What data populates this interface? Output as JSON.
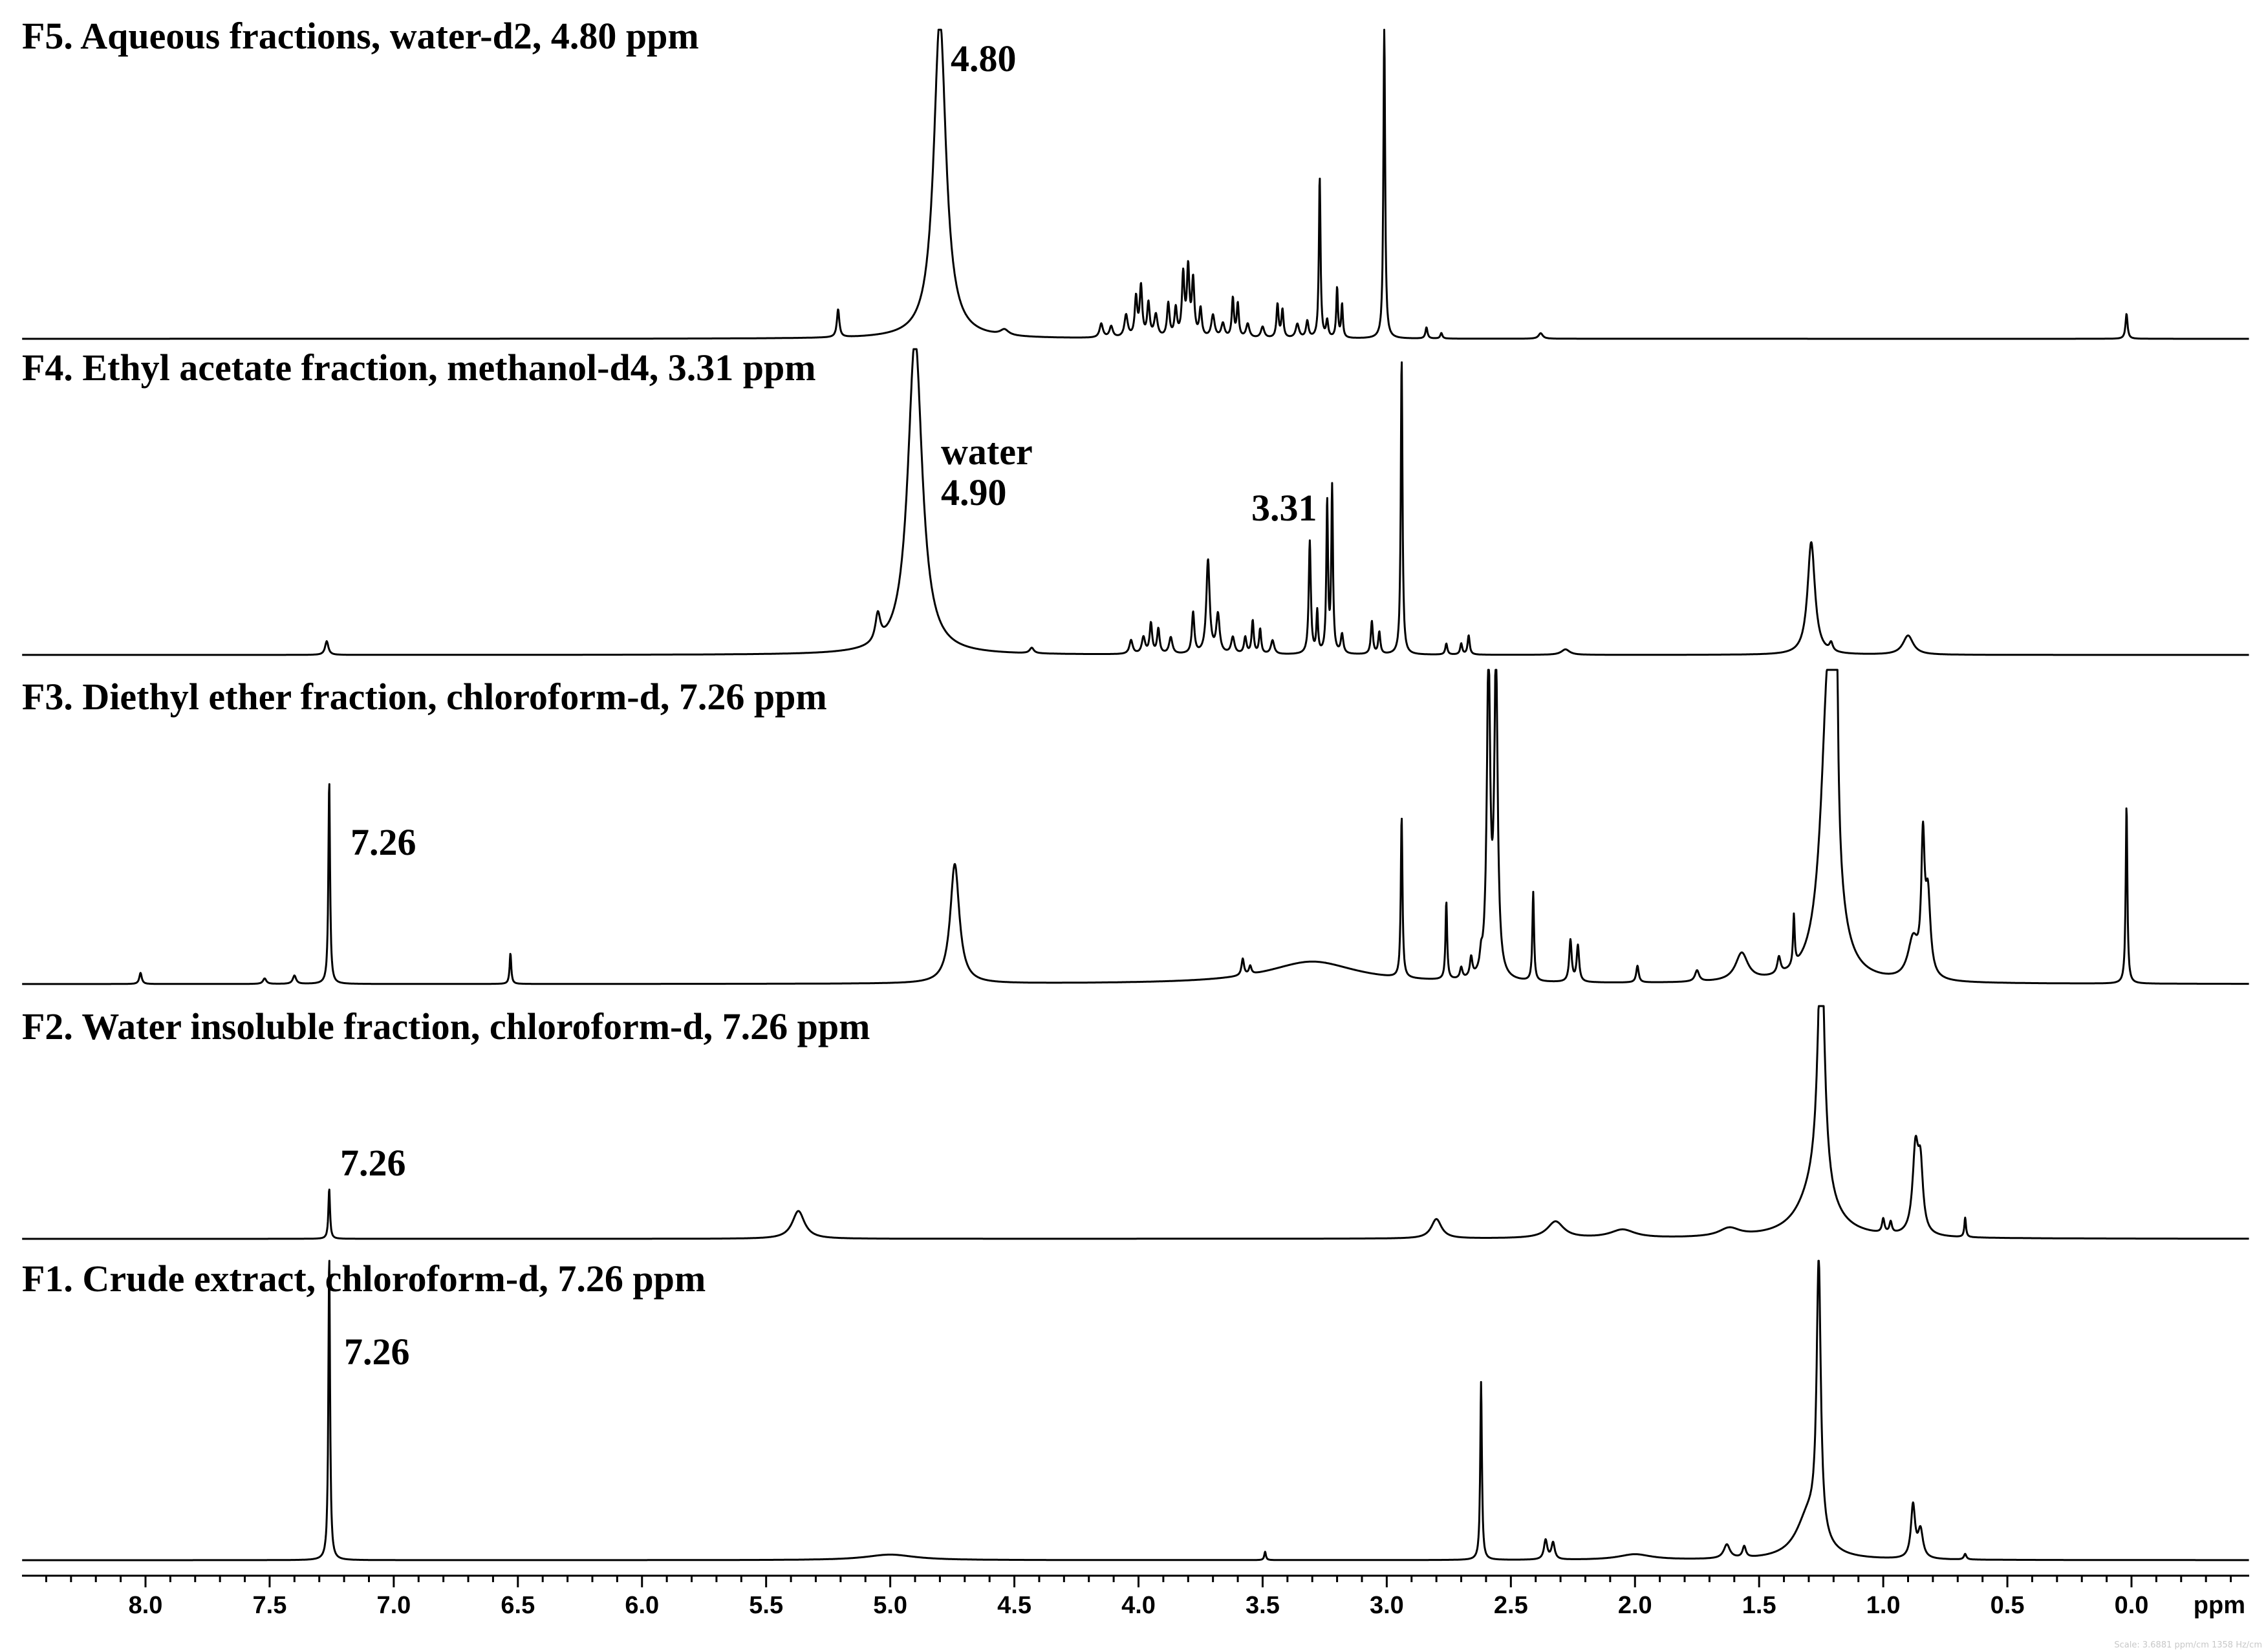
{
  "chart_data": {
    "type": "line",
    "xlabel": "ppm",
    "x_reversed": true,
    "xlim": [
      8.5,
      -0.5
    ],
    "xticks": [
      "8.0",
      "7.5",
      "7.0",
      "6.5",
      "6.0",
      "5.5",
      "5.0",
      "4.5",
      "4.0",
      "3.5",
      "3.0",
      "2.5",
      "2.0",
      "1.5",
      "1.0",
      "0.5",
      "0.0"
    ],
    "minor_tick_step": 0.1,
    "grid": false,
    "footer": "Scale: 3.6881 ppm/cm  1358 Hz/cm",
    "series": [
      {
        "name": "F5. Aqueous fractions, water-d2, 4.80 ppm",
        "annotations": [
          {
            "text": "4.80",
            "x": 4.8
          }
        ],
        "baseline_tilt": 0.0,
        "peaks": [
          {
            "x": 5.21,
            "h": 0.1,
            "w": 0.006
          },
          {
            "x": 4.8,
            "h": 1.15,
            "w": 0.03
          },
          {
            "x": 4.54,
            "h": 0.02,
            "w": 0.02
          },
          {
            "x": 4.15,
            "h": 0.05,
            "w": 0.008
          },
          {
            "x": 4.11,
            "h": 0.04,
            "w": 0.008
          },
          {
            "x": 4.05,
            "h": 0.08,
            "w": 0.008
          },
          {
            "x": 4.01,
            "h": 0.14,
            "w": 0.006
          },
          {
            "x": 3.99,
            "h": 0.18,
            "w": 0.006
          },
          {
            "x": 3.96,
            "h": 0.12,
            "w": 0.006
          },
          {
            "x": 3.93,
            "h": 0.08,
            "w": 0.008
          },
          {
            "x": 3.88,
            "h": 0.12,
            "w": 0.006
          },
          {
            "x": 3.85,
            "h": 0.1,
            "w": 0.006
          },
          {
            "x": 3.82,
            "h": 0.22,
            "w": 0.006
          },
          {
            "x": 3.8,
            "h": 0.24,
            "w": 0.006
          },
          {
            "x": 3.78,
            "h": 0.2,
            "w": 0.006
          },
          {
            "x": 3.75,
            "h": 0.1,
            "w": 0.006
          },
          {
            "x": 3.7,
            "h": 0.08,
            "w": 0.008
          },
          {
            "x": 3.66,
            "h": 0.05,
            "w": 0.008
          },
          {
            "x": 3.62,
            "h": 0.14,
            "w": 0.005
          },
          {
            "x": 3.6,
            "h": 0.12,
            "w": 0.005
          },
          {
            "x": 3.56,
            "h": 0.05,
            "w": 0.008
          },
          {
            "x": 3.5,
            "h": 0.04,
            "w": 0.008
          },
          {
            "x": 3.44,
            "h": 0.12,
            "w": 0.005
          },
          {
            "x": 3.42,
            "h": 0.1,
            "w": 0.005
          },
          {
            "x": 3.36,
            "h": 0.05,
            "w": 0.008
          },
          {
            "x": 3.32,
            "h": 0.06,
            "w": 0.006
          },
          {
            "x": 3.27,
            "h": 0.58,
            "w": 0.004
          },
          {
            "x": 3.24,
            "h": 0.06,
            "w": 0.005
          },
          {
            "x": 3.2,
            "h": 0.18,
            "w": 0.004
          },
          {
            "x": 3.18,
            "h": 0.12,
            "w": 0.004
          },
          {
            "x": 3.01,
            "h": 1.15,
            "w": 0.004
          },
          {
            "x": 2.84,
            "h": 0.04,
            "w": 0.005
          },
          {
            "x": 2.78,
            "h": 0.02,
            "w": 0.005
          },
          {
            "x": 2.38,
            "h": 0.02,
            "w": 0.01
          },
          {
            "x": 0.02,
            "h": 0.09,
            "w": 0.005
          }
        ]
      },
      {
        "name": "F4. Ethyl acetate fraction, methanol-d4, 3.31 ppm",
        "annotations": [
          {
            "text": "water",
            "x": 4.9
          },
          {
            "text": "4.90",
            "x": 4.9
          },
          {
            "text": "3.31",
            "x": 3.31
          }
        ],
        "baseline_tilt": 0.0,
        "peaks": [
          {
            "x": 7.27,
            "h": 0.05,
            "w": 0.008
          },
          {
            "x": 5.05,
            "h": 0.1,
            "w": 0.012
          },
          {
            "x": 4.9,
            "h": 1.15,
            "w": 0.035
          },
          {
            "x": 4.43,
            "h": 0.02,
            "w": 0.01
          },
          {
            "x": 4.03,
            "h": 0.05,
            "w": 0.008
          },
          {
            "x": 3.98,
            "h": 0.06,
            "w": 0.008
          },
          {
            "x": 3.95,
            "h": 0.11,
            "w": 0.006
          },
          {
            "x": 3.92,
            "h": 0.09,
            "w": 0.006
          },
          {
            "x": 3.87,
            "h": 0.06,
            "w": 0.008
          },
          {
            "x": 3.78,
            "h": 0.15,
            "w": 0.006
          },
          {
            "x": 3.72,
            "h": 0.34,
            "w": 0.008
          },
          {
            "x": 3.68,
            "h": 0.14,
            "w": 0.008
          },
          {
            "x": 3.62,
            "h": 0.06,
            "w": 0.008
          },
          {
            "x": 3.57,
            "h": 0.06,
            "w": 0.006
          },
          {
            "x": 3.54,
            "h": 0.12,
            "w": 0.005
          },
          {
            "x": 3.51,
            "h": 0.09,
            "w": 0.005
          },
          {
            "x": 3.46,
            "h": 0.05,
            "w": 0.008
          },
          {
            "x": 3.31,
            "h": 0.41,
            "w": 0.005
          },
          {
            "x": 3.28,
            "h": 0.15,
            "w": 0.004
          },
          {
            "x": 3.24,
            "h": 0.55,
            "w": 0.004
          },
          {
            "x": 3.22,
            "h": 0.6,
            "w": 0.004
          },
          {
            "x": 3.18,
            "h": 0.07,
            "w": 0.006
          },
          {
            "x": 3.06,
            "h": 0.12,
            "w": 0.005
          },
          {
            "x": 3.03,
            "h": 0.08,
            "w": 0.005
          },
          {
            "x": 2.94,
            "h": 1.08,
            "w": 0.004
          },
          {
            "x": 2.76,
            "h": 0.04,
            "w": 0.005
          },
          {
            "x": 2.7,
            "h": 0.04,
            "w": 0.005
          },
          {
            "x": 2.67,
            "h": 0.07,
            "w": 0.005
          },
          {
            "x": 2.28,
            "h": 0.02,
            "w": 0.02
          },
          {
            "x": 1.29,
            "h": 0.41,
            "w": 0.018
          },
          {
            "x": 1.21,
            "h": 0.03,
            "w": 0.008
          },
          {
            "x": 0.9,
            "h": 0.07,
            "w": 0.025
          }
        ]
      },
      {
        "name": "F3. Diethyl ether fraction, chloroform-d, 7.26 ppm",
        "annotations": [
          {
            "text": "7.26",
            "x": 7.26
          }
        ],
        "baseline_tilt": 0.0,
        "peaks": [
          {
            "x": 8.02,
            "h": 0.04,
            "w": 0.006
          },
          {
            "x": 7.52,
            "h": 0.02,
            "w": 0.008
          },
          {
            "x": 7.4,
            "h": 0.03,
            "w": 0.008
          },
          {
            "x": 7.26,
            "h": 0.73,
            "w": 0.004
          },
          {
            "x": 6.53,
            "h": 0.11,
            "w": 0.004
          },
          {
            "x": 4.74,
            "h": 0.43,
            "w": 0.022
          },
          {
            "x": 3.58,
            "h": 0.06,
            "w": 0.006
          },
          {
            "x": 3.55,
            "h": 0.03,
            "w": 0.006
          },
          {
            "x": 3.3,
            "h": 0.08,
            "w": 0.22
          },
          {
            "x": 2.94,
            "h": 0.58,
            "w": 0.004
          },
          {
            "x": 2.76,
            "h": 0.28,
            "w": 0.004
          },
          {
            "x": 2.7,
            "h": 0.04,
            "w": 0.006
          },
          {
            "x": 2.66,
            "h": 0.07,
            "w": 0.006
          },
          {
            "x": 2.62,
            "h": 0.05,
            "w": 0.006
          },
          {
            "x": 2.59,
            "h": 1.15,
            "w": 0.008
          },
          {
            "x": 2.56,
            "h": 1.15,
            "w": 0.008
          },
          {
            "x": 2.41,
            "h": 0.32,
            "w": 0.004
          },
          {
            "x": 2.26,
            "h": 0.15,
            "w": 0.006
          },
          {
            "x": 2.23,
            "h": 0.13,
            "w": 0.006
          },
          {
            "x": 1.99,
            "h": 0.06,
            "w": 0.006
          },
          {
            "x": 1.75,
            "h": 0.04,
            "w": 0.01
          },
          {
            "x": 1.57,
            "h": 0.1,
            "w": 0.03
          },
          {
            "x": 1.42,
            "h": 0.06,
            "w": 0.008
          },
          {
            "x": 1.36,
            "h": 0.18,
            "w": 0.004
          },
          {
            "x": 1.22,
            "h": 1.15,
            "w": 0.035
          },
          {
            "x": 1.19,
            "h": 1.15,
            "w": 0.006
          },
          {
            "x": 0.88,
            "h": 0.14,
            "w": 0.025
          },
          {
            "x": 0.84,
            "h": 0.46,
            "w": 0.008
          },
          {
            "x": 0.82,
            "h": 0.28,
            "w": 0.012
          },
          {
            "x": 0.02,
            "h": 0.64,
            "w": 0.004
          }
        ]
      },
      {
        "name": "F2. Water insoluble fraction, chloroform-d, 7.26 ppm",
        "annotations": [
          {
            "text": "7.26",
            "x": 7.26
          }
        ],
        "baseline_tilt": 0.0,
        "peaks": [
          {
            "x": 7.26,
            "h": 0.18,
            "w": 0.004
          },
          {
            "x": 5.37,
            "h": 0.1,
            "w": 0.03
          },
          {
            "x": 2.8,
            "h": 0.07,
            "w": 0.025
          },
          {
            "x": 2.32,
            "h": 0.06,
            "w": 0.04
          },
          {
            "x": 2.05,
            "h": 0.03,
            "w": 0.06
          },
          {
            "x": 1.62,
            "h": 0.03,
            "w": 0.05
          },
          {
            "x": 1.27,
            "h": 0.18,
            "w": 0.08
          },
          {
            "x": 1.25,
            "h": 0.95,
            "w": 0.016
          },
          {
            "x": 1.0,
            "h": 0.05,
            "w": 0.006
          },
          {
            "x": 0.97,
            "h": 0.04,
            "w": 0.006
          },
          {
            "x": 0.87,
            "h": 0.3,
            "w": 0.014
          },
          {
            "x": 0.85,
            "h": 0.22,
            "w": 0.012
          },
          {
            "x": 0.67,
            "h": 0.07,
            "w": 0.004
          }
        ]
      },
      {
        "name": "F1. Crude extract, chloroform-d, 7.26 ppm",
        "annotations": [
          {
            "text": "7.26",
            "x": 7.26
          }
        ],
        "baseline_tilt": 0.0,
        "peaks": [
          {
            "x": 7.26,
            "h": 1.1,
            "w": 0.004
          },
          {
            "x": 5.0,
            "h": 0.02,
            "w": 0.12
          },
          {
            "x": 3.49,
            "h": 0.03,
            "w": 0.004
          },
          {
            "x": 2.62,
            "h": 0.64,
            "w": 0.004
          },
          {
            "x": 2.36,
            "h": 0.07,
            "w": 0.008
          },
          {
            "x": 2.33,
            "h": 0.06,
            "w": 0.008
          },
          {
            "x": 2.0,
            "h": 0.02,
            "w": 0.08
          },
          {
            "x": 1.63,
            "h": 0.05,
            "w": 0.015
          },
          {
            "x": 1.56,
            "h": 0.04,
            "w": 0.008
          },
          {
            "x": 1.3,
            "h": 0.16,
            "w": 0.06
          },
          {
            "x": 1.26,
            "h": 0.98,
            "w": 0.01
          },
          {
            "x": 0.88,
            "h": 0.19,
            "w": 0.01
          },
          {
            "x": 0.85,
            "h": 0.1,
            "w": 0.012
          },
          {
            "x": 0.67,
            "h": 0.02,
            "w": 0.006
          }
        ]
      }
    ]
  }
}
